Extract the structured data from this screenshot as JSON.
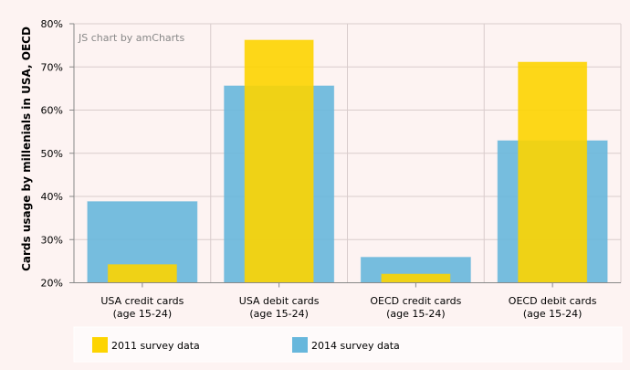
{
  "chart_data": {
    "type": "bar",
    "title": "",
    "watermark": "JS chart by amCharts",
    "ylabel": "Cards usage by millenials in USA, OECD",
    "xlabel": "",
    "ylim": [
      20,
      80
    ],
    "yticks": [
      "20%",
      "30%",
      "40%",
      "50%",
      "60%",
      "70%",
      "80%"
    ],
    "ytick_values": [
      20,
      30,
      40,
      50,
      60,
      70,
      80
    ],
    "grid": true,
    "categories": [
      [
        "USA credit cards",
        "(age 15-24)"
      ],
      [
        "USA debit cards",
        "(age 15-24)"
      ],
      [
        "OECD credit cards",
        "(age 15-24)"
      ],
      [
        "OECD debit cards",
        "(age 15-24)"
      ]
    ],
    "series": [
      {
        "name": "2014 survey data",
        "color": "#67b7dc",
        "values": [
          38.8,
          65.6,
          25.9,
          52.9
        ]
      },
      {
        "name": "2011 survey data",
        "color": "#fdd400",
        "values": [
          24.2,
          76.2,
          22.0,
          71.1
        ]
      }
    ],
    "legend": {
      "placement": "bottom",
      "items": [
        {
          "label": "2011 survey data",
          "color": "#fdd400"
        },
        {
          "label": "2014 survey data",
          "color": "#67b7dc"
        }
      ]
    }
  }
}
